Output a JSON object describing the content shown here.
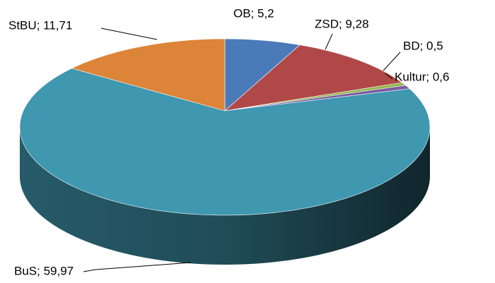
{
  "chart_data": {
    "type": "pie",
    "values": [
      5.2,
      9.28,
      0.5,
      0.6,
      59.97,
      11.71
    ],
    "value_labels": [
      "OB; 5,2",
      "ZSD; 9,28",
      "BD; 0,5",
      "Kultur; 0,6",
      "BuS; 59,97",
      "StBU; 11,71"
    ],
    "colors": [
      "#4a7ab8",
      "#b04848",
      "#94b64e",
      "#7a5ca0",
      "#3f97b0",
      "#dc8438"
    ]
  }
}
